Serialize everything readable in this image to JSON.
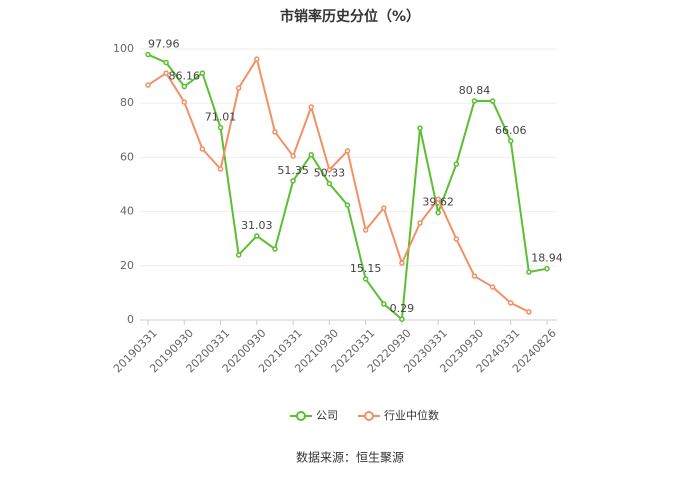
{
  "chart_data": {
    "type": "line",
    "title": "市销率历史分位（%）",
    "categories": [
      "20190331",
      null,
      "20190930",
      null,
      "20200331",
      null,
      "20200930",
      null,
      "20210331",
      null,
      "20210930",
      null,
      "20220331",
      null,
      "20220930",
      null,
      "20230331",
      null,
      "20230930",
      null,
      "20240331",
      null,
      "20240826"
    ],
    "series": [
      {
        "name": "公司",
        "color": "#5cbf32",
        "values": [
          97.96,
          95,
          86.16,
          91.1,
          71.01,
          24,
          31.03,
          26.2,
          51.35,
          61,
          50.33,
          42.4,
          15.15,
          5.9,
          0.29,
          70.8,
          39.62,
          57.5,
          80.84,
          80.8,
          66.06,
          17.7,
          18.94
        ]
      },
      {
        "name": "行业中位数",
        "color": "#f39066",
        "values": [
          86.7,
          91.1,
          80.4,
          63.1,
          55.7,
          85.6,
          96.3,
          69.4,
          60.5,
          78.6,
          55.4,
          62.4,
          33.2,
          41.3,
          21,
          35.8,
          44.6,
          29.9,
          16.2,
          12.2,
          6.3,
          3,
          null
        ]
      }
    ],
    "ylim": [
      0,
      100
    ],
    "yticks": [
      0,
      20,
      40,
      60,
      80,
      100
    ],
    "grid": true,
    "source": "数据来源：恒生聚源"
  }
}
